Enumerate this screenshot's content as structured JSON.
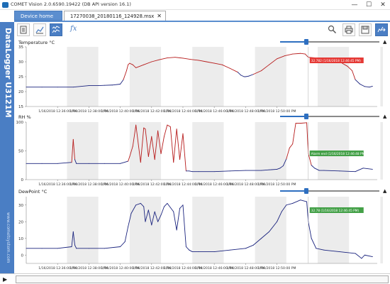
{
  "window": {
    "title": "COMET Vision 2.0.6590.19422 (DB API version 16.1)",
    "minimize": "—",
    "maximize": "☐",
    "close": "✕"
  },
  "tabs": [
    {
      "label": "Device home"
    },
    {
      "label": "17270038_20180116_124928.msx",
      "close": "✕"
    }
  ],
  "sidebar": {
    "title": "DataLogger U3121M",
    "url": "www.cometsystem.com"
  },
  "toolbar": {
    "fx_label": "fx",
    "icons": [
      "report-icon",
      "chart-icon",
      "multi-chart-icon",
      "function-icon",
      "zoom-icon",
      "print-icon",
      "save-icon",
      "export-icon"
    ]
  },
  "colors": {
    "accent": "#4a7ec4",
    "series_normal": "#1a237e",
    "series_alarm": "#b71c1c",
    "alarm_label_red": "#e53935",
    "alarm_label_green": "#43a047",
    "band": "#ececec"
  },
  "time_ticks": [
    "1/16/2018 12:36:00 PM",
    "1/16/2018 12:38:00 PM",
    "1/16/2018 12:40:00 PM",
    "1/16/2018 12:42:00 PM",
    "1/16/2018 12:44:00 PM",
    "1/16/2018 12:46:00 PM",
    "1/16/2018 12:48:00 PM",
    "1/16/2018 12:50:00 PM"
  ],
  "chart_data": [
    {
      "type": "line",
      "title": "Temperature °C",
      "x_unit": "minutes after 12:34 PM",
      "ylim": [
        15,
        35
      ],
      "yticks": [
        "35",
        "30",
        "25",
        "20",
        "15"
      ],
      "alarm_threshold": 27,
      "x": [
        0,
        1,
        2,
        3,
        4,
        4.6,
        5,
        5.5,
        6,
        6.2,
        6.4,
        6.5,
        6.6,
        6.8,
        7,
        7.5,
        8,
        8.5,
        9,
        9.5,
        10,
        10.5,
        11,
        11.5,
        12,
        12.5,
        13,
        13.5,
        13.7,
        13.9,
        14,
        14.2,
        14.5,
        15,
        15.5,
        16,
        16.5,
        17,
        17.5,
        17.8,
        18,
        18.5,
        19,
        19.5,
        20,
        20.5,
        20.8,
        21,
        21.3,
        21.6,
        21.9,
        22.1
      ],
      "y": [
        21.5,
        21.5,
        21.5,
        21.5,
        22,
        22,
        22.1,
        22.2,
        22.5,
        24,
        27,
        29,
        29.5,
        29,
        28,
        29,
        30,
        30.7,
        31.3,
        31.5,
        31.2,
        30.8,
        30.5,
        30,
        29.5,
        29,
        27.8,
        26.5,
        25.5,
        25,
        25,
        25.2,
        25.8,
        27,
        29,
        31,
        32,
        32.6,
        32.8,
        32.6,
        31.5,
        31.3,
        31,
        30.6,
        30,
        28.5,
        27,
        24,
        22.5,
        21.7,
        21.5,
        21.8
      ],
      "marker": {
        "x": 18,
        "label": "32.782 (1/16/2018 12:46:45 PM)",
        "color": "red"
      }
    },
    {
      "type": "line",
      "title": "RH %",
      "x_unit": "minutes after 12:34 PM",
      "ylim": [
        0,
        100
      ],
      "yticks": [
        "100",
        "50",
        "0"
      ],
      "alarm_threshold": 40,
      "x": [
        0,
        1,
        2,
        2.9,
        3,
        3.1,
        3.2,
        4,
        5,
        6,
        6.5,
        6.6,
        6.8,
        7,
        7.3,
        7.5,
        7.6,
        7.8,
        8,
        8.2,
        8.4,
        8.6,
        8.8,
        9,
        9.2,
        9.4,
        9.6,
        9.8,
        10,
        10.2,
        10.4,
        10.6,
        11,
        12,
        13,
        14,
        15,
        15.5,
        16,
        16.2,
        16.4,
        16.6,
        16.8,
        17,
        17.2,
        17.5,
        17.9,
        18,
        18.2,
        18.4,
        18.7,
        19,
        20,
        21,
        21.5,
        22.1
      ],
      "y": [
        28,
        28,
        28,
        30,
        70,
        35,
        28,
        28,
        28,
        28,
        32,
        40,
        58,
        95,
        30,
        90,
        88,
        40,
        75,
        35,
        85,
        45,
        75,
        95,
        92,
        30,
        88,
        35,
        80,
        15,
        15,
        14,
        14,
        14,
        15,
        16,
        16,
        17,
        18,
        20,
        24,
        36,
        55,
        62,
        98,
        98,
        99,
        45,
        25,
        20,
        16,
        16,
        15,
        14,
        20,
        18
      ],
      "marker": {
        "x": 18,
        "label": "Alarm end (1/16/2018 12:46:48 PM)",
        "color": "green"
      }
    },
    {
      "type": "line",
      "title": "DewPoint °C",
      "x_unit": "minutes after 12:34 PM",
      "ylim": [
        -5,
        35
      ],
      "yticks": [
        "30",
        "20",
        "10",
        "0"
      ],
      "x": [
        0,
        1,
        2,
        2.9,
        3,
        3.1,
        3.2,
        4,
        5,
        6,
        6.3,
        6.5,
        6.7,
        7,
        7.3,
        7.5,
        7.6,
        7.8,
        8,
        8.2,
        8.4,
        8.6,
        8.8,
        9,
        9.4,
        9.6,
        9.8,
        10,
        10.2,
        10.4,
        10.6,
        11,
        12,
        13,
        14,
        14.5,
        15,
        15.5,
        16,
        16.3,
        16.6,
        17,
        17.5,
        17.9,
        18,
        18.2,
        18.5,
        19,
        20,
        21,
        21.4,
        21.6,
        22.1
      ],
      "y": [
        4,
        4,
        4,
        5,
        14,
        6,
        4,
        4,
        4,
        5,
        8,
        17,
        25,
        30,
        31,
        29,
        20,
        27,
        18,
        26,
        20,
        24,
        29,
        31,
        26,
        15,
        28,
        30,
        5,
        3,
        2,
        2,
        2,
        3,
        4,
        6,
        10,
        14,
        20,
        26,
        30,
        31,
        33,
        32,
        20,
        10,
        4,
        3,
        2,
        1,
        -2,
        0,
        -1
      ],
      "marker": {
        "x": 18,
        "label": "32.78 (1/16/2018 12:46:45 PM)",
        "color": "green"
      }
    }
  ]
}
